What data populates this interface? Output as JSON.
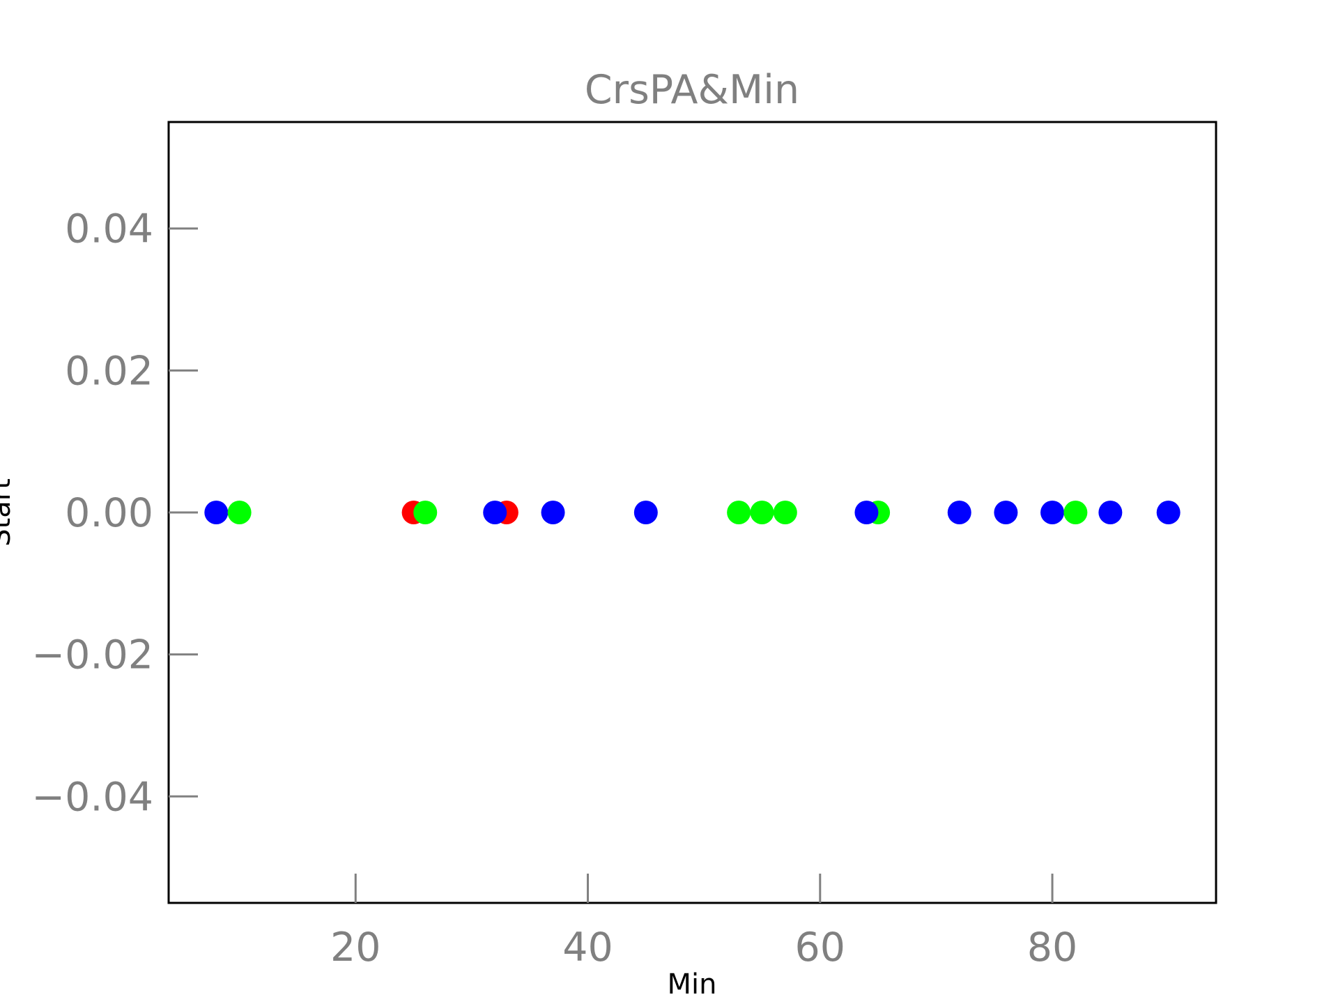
{
  "chart_data": {
    "type": "scatter",
    "title": "CrsPA&Min",
    "xlabel": "Min",
    "ylabel": "Start",
    "xlim": [
      3.9,
      94.1
    ],
    "ylim": [
      -0.055,
      0.055
    ],
    "xticks": [
      20,
      40,
      60,
      80
    ],
    "xtick_labels": [
      "20",
      "40",
      "60",
      "80"
    ],
    "yticks": [
      0.04,
      0.02,
      0.0,
      -0.02,
      -0.04
    ],
    "ytick_labels": [
      "0.04",
      "0.02",
      "0.00",
      "−0.02",
      "−0.04"
    ],
    "grid": false,
    "colors": {
      "red": "#ff0000",
      "green": "#00ff00",
      "blue": "#0000ff",
      "axis": "#000000",
      "tick": "#808080"
    },
    "points": [
      {
        "x": 8,
        "y": 0,
        "color": "#0000ff"
      },
      {
        "x": 10,
        "y": 0,
        "color": "#00ff00"
      },
      {
        "x": 25,
        "y": 0,
        "color": "#ff0000"
      },
      {
        "x": 26,
        "y": 0,
        "color": "#00ff00"
      },
      {
        "x": 33,
        "y": 0,
        "color": "#ff0000"
      },
      {
        "x": 32,
        "y": 0,
        "color": "#0000ff"
      },
      {
        "x": 37,
        "y": 0,
        "color": "#0000ff"
      },
      {
        "x": 45,
        "y": 0,
        "color": "#0000ff"
      },
      {
        "x": 53,
        "y": 0,
        "color": "#00ff00"
      },
      {
        "x": 55,
        "y": 0,
        "color": "#00ff00"
      },
      {
        "x": 57,
        "y": 0,
        "color": "#00ff00"
      },
      {
        "x": 65,
        "y": 0,
        "color": "#00ff00"
      },
      {
        "x": 64,
        "y": 0,
        "color": "#0000ff"
      },
      {
        "x": 72,
        "y": 0,
        "color": "#0000ff"
      },
      {
        "x": 76,
        "y": 0,
        "color": "#0000ff"
      },
      {
        "x": 80,
        "y": 0,
        "color": "#0000ff"
      },
      {
        "x": 82,
        "y": 0,
        "color": "#00ff00"
      },
      {
        "x": 85,
        "y": 0,
        "color": "#0000ff"
      },
      {
        "x": 90,
        "y": 0,
        "color": "#0000ff"
      }
    ]
  }
}
